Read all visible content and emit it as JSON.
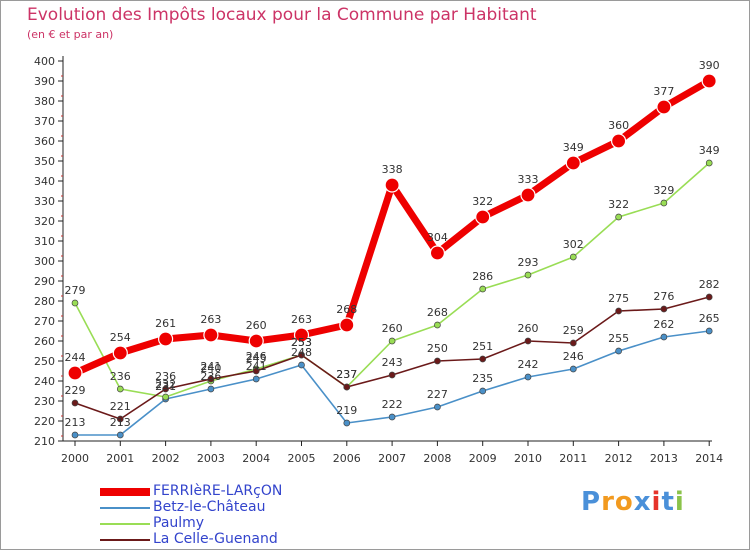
{
  "title": "Evolution des Impôts locaux pour la Commune par Habitant",
  "subtitle": "(en € et par an)",
  "logo": {
    "text": "Proxiti",
    "letters": [
      {
        "ch": "P",
        "color": "#4a90d9"
      },
      {
        "ch": "r",
        "color": "#f29a1f"
      },
      {
        "ch": "o",
        "color": "#f29a1f"
      },
      {
        "ch": "x",
        "color": "#4a90d9"
      },
      {
        "ch": "i",
        "color": "#e6332a"
      },
      {
        "ch": "t",
        "color": "#4a90d9"
      },
      {
        "ch": "i",
        "color": "#8bc34a"
      }
    ]
  },
  "chart_data": {
    "type": "line",
    "title": "Evolution des Impôts locaux pour la Commune par Habitant",
    "ylabel": "(en € et par an)",
    "xlabel": "",
    "categories": [
      "2000",
      "2001",
      "2002",
      "2003",
      "2004",
      "2005",
      "2006",
      "2007",
      "2008",
      "2009",
      "2010",
      "2011",
      "2012",
      "2013",
      "2014"
    ],
    "ylim": [
      210,
      400
    ],
    "ytick_step": 10,
    "grid": false,
    "legend": "bottom-left",
    "series": [
      {
        "name": "Betz-le-Château",
        "color": "#4a90c8",
        "values": [
          213,
          213,
          231,
          236,
          241,
          248,
          219,
          222,
          227,
          235,
          242,
          246,
          255,
          262,
          265
        ]
      },
      {
        "name": "Paulmy",
        "color": "#99dd55",
        "values": [
          279,
          236,
          232,
          240,
          246,
          253,
          237,
          260,
          268,
          286,
          293,
          302,
          322,
          329,
          349
        ]
      },
      {
        "name": "La Celle-Guenand",
        "color": "#6b1a1a",
        "values": [
          229,
          221,
          236,
          241,
          245,
          253,
          237,
          243,
          250,
          251,
          260,
          259,
          275,
          276,
          282
        ]
      },
      {
        "name": "FERRIèRE-LARçON",
        "color": "#ee0000",
        "values": [
          244,
          254,
          261,
          263,
          260,
          263,
          268,
          338,
          304,
          322,
          333,
          349,
          360,
          377,
          390
        ],
        "highlight": true
      }
    ],
    "legend_order": [
      "FERRIèRE-LARçON",
      "Betz-le-Château",
      "Paulmy",
      "La Celle-Guenand"
    ]
  }
}
